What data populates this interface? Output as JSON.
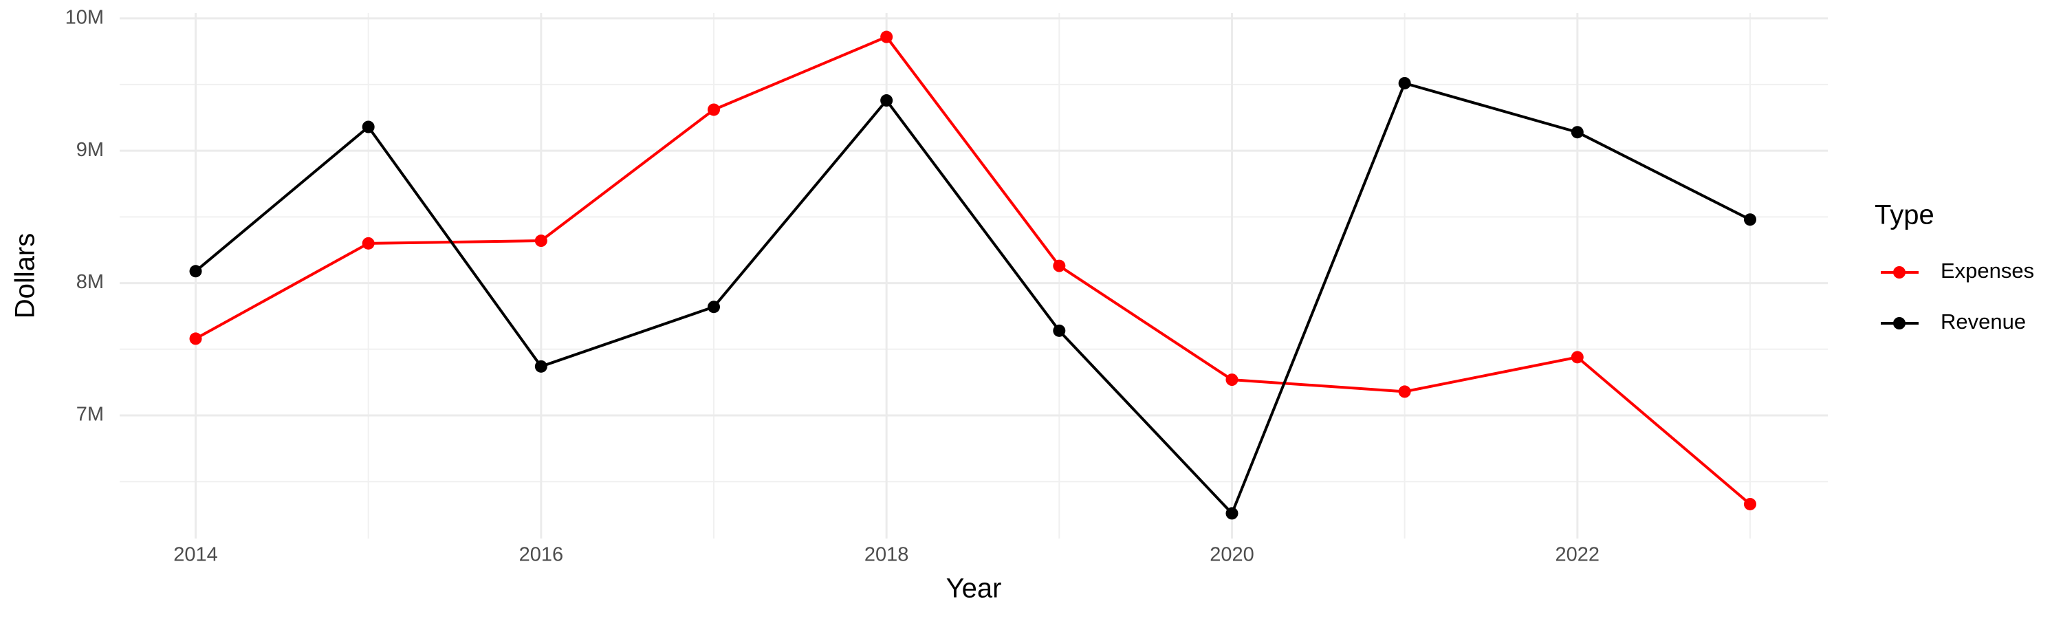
{
  "chart_data": {
    "type": "line",
    "x_label": "Year",
    "y_label": "Dollars",
    "legend_title": "Type",
    "legend_position": "right",
    "grid": true,
    "x": [
      2014,
      2015,
      2016,
      2017,
      2018,
      2019,
      2020,
      2021,
      2022,
      2023
    ],
    "series": [
      {
        "name": "Expenses",
        "color": "#ff0000",
        "values": [
          7580000,
          8300000,
          8320000,
          9310000,
          9860000,
          8130000,
          7270000,
          7180000,
          7440000,
          6330000
        ]
      },
      {
        "name": "Revenue",
        "color": "#000000",
        "values": [
          8090000,
          9180000,
          7370000,
          7820000,
          9380000,
          7640000,
          6260000,
          9510000,
          9140000,
          8480000
        ]
      }
    ],
    "xlim": [
      2013.56,
      2023.45
    ],
    "xticks": [
      2014,
      2016,
      2018,
      2020,
      2022
    ],
    "ylim": [
      6070000,
      10040000
    ],
    "yticks": [
      {
        "value": 7000000,
        "label": "7M"
      },
      {
        "value": 8000000,
        "label": "8M"
      },
      {
        "value": 9000000,
        "label": "9M"
      },
      {
        "value": 10000000,
        "label": "10M"
      }
    ]
  }
}
